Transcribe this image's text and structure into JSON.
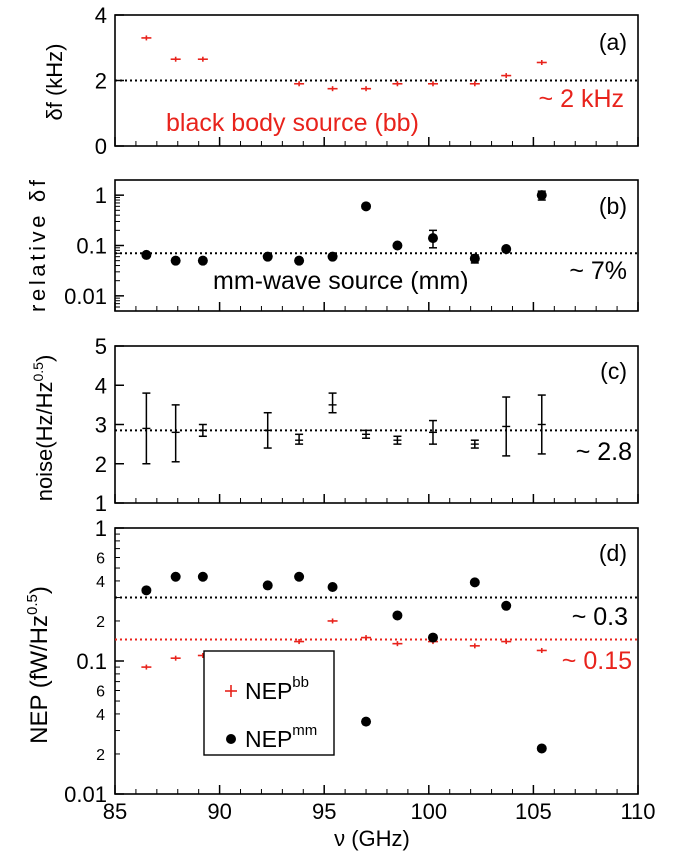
{
  "chart_data": [
    {
      "id": "a",
      "type": "scatter",
      "panel_label": "(a)",
      "ylabel": "δf (kHz)",
      "yscale": "linear",
      "ylim": [
        0,
        4
      ],
      "yticks": [
        {
          "v": 0,
          "label": "0"
        },
        {
          "v": 2,
          "label": "2"
        },
        {
          "v": 4,
          "label": "4"
        }
      ],
      "series": [
        {
          "marker": "plus",
          "color": "#e8231c",
          "errorbars": false,
          "x": [
            86.5,
            87.9,
            89.2,
            93.8,
            95.4,
            97.0,
            98.5,
            100.2,
            102.2,
            103.7,
            105.4
          ],
          "y": [
            3.3,
            2.65,
            2.65,
            1.9,
            1.75,
            1.75,
            1.9,
            1.9,
            1.9,
            2.15,
            2.55
          ]
        }
      ],
      "ref_lines": [
        {
          "y": 2,
          "color": "#000000"
        }
      ],
      "annotations": [
        {
          "text": "black body source (bb)",
          "color": "#e8231c"
        },
        {
          "text": "~ 2 kHz",
          "color": "#e8231c"
        }
      ]
    },
    {
      "id": "b",
      "type": "scatter",
      "panel_label": "(b)",
      "ylabel": "relative δf",
      "yscale": "log",
      "ylim": [
        0.005,
        2
      ],
      "yticks": [
        {
          "v": 0.01,
          "label": "0.01"
        },
        {
          "v": 0.1,
          "label": "0.1"
        },
        {
          "v": 1,
          "label": "1"
        }
      ],
      "series": [
        {
          "marker": "dot",
          "color": "#000000",
          "errorbars": true,
          "x": [
            86.5,
            87.9,
            89.2,
            92.3,
            93.8,
            95.4,
            97.0,
            98.5,
            100.2,
            102.2,
            103.7,
            105.4
          ],
          "y": [
            0.065,
            0.05,
            0.05,
            0.06,
            0.05,
            0.06,
            0.6,
            0.1,
            0.14,
            0.055,
            0.085,
            1.0
          ],
          "err_lo": [
            0,
            0,
            0,
            0,
            0,
            0,
            0,
            0,
            0.09,
            0.045,
            0,
            0.8
          ],
          "err_hi": [
            0,
            0,
            0,
            0,
            0,
            0,
            0,
            0,
            0.2,
            0.065,
            0,
            1.2
          ]
        }
      ],
      "ref_lines": [
        {
          "y": 0.07,
          "color": "#000000"
        }
      ],
      "annotations": [
        {
          "text": "mm-wave source (mm)",
          "color": "#000000"
        },
        {
          "text": "~ 7%",
          "color": "#000000"
        }
      ]
    },
    {
      "id": "c",
      "type": "scatter",
      "panel_label": "(c)",
      "ylabel": "noise(Hz/Hz^0.5)",
      "yscale": "linear",
      "ylim": [
        1,
        5
      ],
      "yticks": [
        {
          "v": 1,
          "label": "1"
        },
        {
          "v": 2,
          "label": "2"
        },
        {
          "v": 3,
          "label": "3"
        },
        {
          "v": 4,
          "label": "4"
        },
        {
          "v": 5,
          "label": "5"
        }
      ],
      "series": [
        {
          "marker": "tick",
          "color": "#000000",
          "errorbars": true,
          "x": [
            86.5,
            87.9,
            89.2,
            92.3,
            93.8,
            95.4,
            97.0,
            98.5,
            100.2,
            102.2,
            103.7,
            105.4
          ],
          "y": [
            2.9,
            2.8,
            2.85,
            2.85,
            2.6,
            3.5,
            2.75,
            2.6,
            2.8,
            2.5,
            2.95,
            3.0
          ],
          "err_lo": [
            2.0,
            2.05,
            2.7,
            2.4,
            2.5,
            3.3,
            2.65,
            2.5,
            2.5,
            2.4,
            2.2,
            2.25
          ],
          "err_hi": [
            3.8,
            3.5,
            3.0,
            3.3,
            2.75,
            3.8,
            2.85,
            2.7,
            3.1,
            2.6,
            3.7,
            3.75
          ]
        }
      ],
      "ref_lines": [
        {
          "y": 2.85,
          "color": "#000000"
        }
      ],
      "annotations": [
        {
          "text": "~ 2.8",
          "color": "#000000"
        }
      ]
    },
    {
      "id": "d",
      "type": "scatter",
      "panel_label": "(d)",
      "ylabel": "NEP (fW/Hz^0.5)",
      "yscale": "log",
      "ylim": [
        0.01,
        1
      ],
      "yticks": [
        {
          "v": 0.01,
          "label": "0.01"
        },
        {
          "v": 0.1,
          "label": "0.1"
        },
        {
          "v": 1,
          "label": "1"
        }
      ],
      "minor_ticks": [
        {
          "v": 0.02,
          "label": "2"
        },
        {
          "v": 0.04,
          "label": "4"
        },
        {
          "v": 0.06,
          "label": "6"
        },
        {
          "v": 0.2,
          "label": "2"
        },
        {
          "v": 0.4,
          "label": "4"
        },
        {
          "v": 0.6,
          "label": "6"
        }
      ],
      "series": [
        {
          "name": "NEP^bb",
          "marker": "plus",
          "color": "#e8231c",
          "errorbars": false,
          "x": [
            86.5,
            87.9,
            89.2,
            93.8,
            95.4,
            97.0,
            98.5,
            100.2,
            102.2,
            103.7,
            105.4
          ],
          "y": [
            0.09,
            0.105,
            0.11,
            0.14,
            0.2,
            0.15,
            0.135,
            0.14,
            0.13,
            0.14,
            0.12
          ]
        },
        {
          "name": "NEP^mm",
          "marker": "dot",
          "color": "#000000",
          "errorbars": false,
          "x": [
            86.5,
            87.9,
            89.2,
            92.3,
            93.8,
            95.4,
            97.0,
            98.5,
            100.2,
            102.2,
            103.7,
            105.4
          ],
          "y": [
            0.34,
            0.43,
            0.43,
            0.37,
            0.43,
            0.36,
            0.035,
            0.22,
            0.15,
            0.39,
            0.26,
            0.022
          ]
        }
      ],
      "ref_lines": [
        {
          "y": 0.3,
          "color": "#000000"
        },
        {
          "y": 0.145,
          "color": "#e8231c"
        }
      ],
      "annotations": [
        {
          "text": "~ 0.3",
          "color": "#000000"
        },
        {
          "text": "~ 0.15",
          "color": "#e8231c"
        }
      ],
      "legend": {
        "placement": "bottom-left",
        "entries": [
          {
            "base": "NEP",
            "sup": "bb",
            "marker": "plus",
            "color": "#e8231c"
          },
          {
            "base": "NEP",
            "sup": "mm",
            "marker": "dot",
            "color": "#000000"
          }
        ]
      }
    }
  ],
  "xaxis": {
    "label": "ν (GHz)",
    "xlim": [
      85,
      110
    ],
    "ticks": [
      {
        "v": 85,
        "label": "85"
      },
      {
        "v": 90,
        "label": "90"
      },
      {
        "v": 95,
        "label": "95"
      },
      {
        "v": 100,
        "label": "100"
      },
      {
        "v": 105,
        "label": "105"
      },
      {
        "v": 110,
        "label": "110"
      }
    ]
  }
}
